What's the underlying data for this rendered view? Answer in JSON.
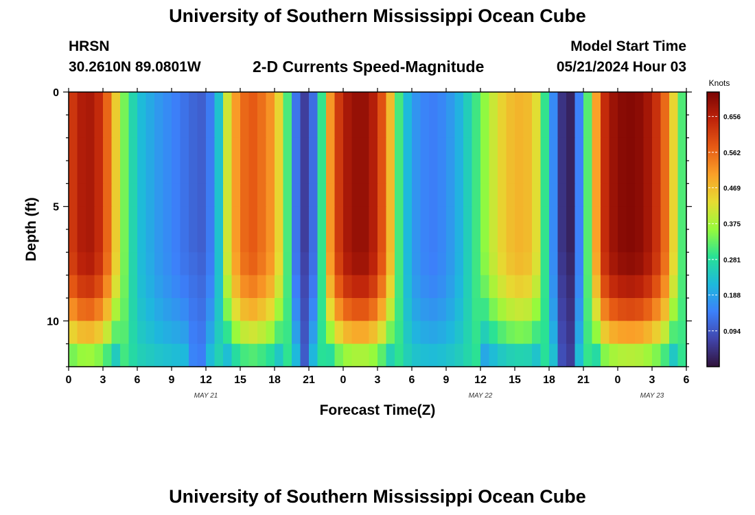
{
  "header": {
    "title": "University of Southern Mississippi Ocean Cube",
    "station": "HRSN",
    "coordinates": "30.2610N  89.0801W",
    "subtitle": "2-D Currents Speed-Magnitude",
    "model_start_label": "Model Start Time",
    "model_start_value": "05/21/2024 Hour 03"
  },
  "footer": {
    "title": "University of Southern Mississippi Ocean Cube"
  },
  "chart_data": {
    "type": "heatmap",
    "title": "2-D Currents Speed-Magnitude",
    "xlabel": "Forecast Time(Z)",
    "ylabel": "Depth (ft)",
    "x_ticks": [
      "0",
      "3",
      "6",
      "9",
      "12",
      "15",
      "18",
      "21",
      "0",
      "3",
      "6",
      "9",
      "12",
      "15",
      "18",
      "21",
      "0",
      "3",
      "6"
    ],
    "x_range_hours": [
      0,
      54
    ],
    "date_labels": [
      {
        "text": "MAY 21",
        "hour": 12
      },
      {
        "text": "MAY 22",
        "hour": 36
      },
      {
        "text": "MAY 23",
        "hour": 51
      }
    ],
    "y_ticks": [
      "0",
      "5",
      "10"
    ],
    "y_range_ft": [
      0,
      12
    ],
    "depth_rows_ft": [
      0.5,
      1.5,
      2.5,
      3.5,
      4.5,
      5.5,
      6.5,
      7.5,
      8.5,
      9.5,
      10.5,
      11.5
    ],
    "colorbar": {
      "label": "Knots",
      "ticks": [
        "0.656",
        "0.562",
        "0.469",
        "0.375",
        "0.281",
        "0.188",
        "0.094"
      ],
      "range": [
        0.0,
        0.72
      ]
    },
    "surface_speed_profile": [
      {
        "hour": 0,
        "knots": 0.6
      },
      {
        "hour": 1,
        "knots": 0.66
      },
      {
        "hour": 2,
        "knots": 0.67
      },
      {
        "hour": 3,
        "knots": 0.62
      },
      {
        "hour": 4,
        "knots": 0.47
      },
      {
        "hour": 5,
        "knots": 0.32
      },
      {
        "hour": 6,
        "knots": 0.23
      },
      {
        "hour": 7,
        "knots": 0.2
      },
      {
        "hour": 8,
        "knots": 0.17
      },
      {
        "hour": 9,
        "knots": 0.15
      },
      {
        "hour": 10,
        "knots": 0.13
      },
      {
        "hour": 11,
        "knots": 0.11
      },
      {
        "hour": 12,
        "knots": 0.1
      },
      {
        "hour": 13,
        "knots": 0.2
      },
      {
        "hour": 14,
        "knots": 0.44
      },
      {
        "hour": 15,
        "knots": 0.55
      },
      {
        "hour": 16,
        "knots": 0.58
      },
      {
        "hour": 17,
        "knots": 0.55
      },
      {
        "hour": 18,
        "knots": 0.5
      },
      {
        "hour": 19,
        "knots": 0.34
      },
      {
        "hour": 20,
        "knots": 0.1
      },
      {
        "hour": 21,
        "knots": 0.04
      },
      {
        "hour": 22,
        "knots": 0.26
      },
      {
        "hour": 23,
        "knots": 0.55
      },
      {
        "hour": 24,
        "knots": 0.66
      },
      {
        "hour": 25,
        "knots": 0.69
      },
      {
        "hour": 26,
        "knots": 0.69
      },
      {
        "hour": 27,
        "knots": 0.64
      },
      {
        "hour": 28,
        "knots": 0.5
      },
      {
        "hour": 29,
        "knots": 0.28
      },
      {
        "hour": 30,
        "knots": 0.18
      },
      {
        "hour": 31,
        "knots": 0.15
      },
      {
        "hour": 32,
        "knots": 0.14
      },
      {
        "hour": 33,
        "knots": 0.16
      },
      {
        "hour": 34,
        "knots": 0.2
      },
      {
        "hour": 35,
        "knots": 0.26
      },
      {
        "hour": 36,
        "knots": 0.33
      },
      {
        "hour": 37,
        "knots": 0.4
      },
      {
        "hour": 38,
        "knots": 0.45
      },
      {
        "hour": 39,
        "knots": 0.48
      },
      {
        "hour": 40,
        "knots": 0.48
      },
      {
        "hour": 41,
        "knots": 0.42
      },
      {
        "hour": 42,
        "knots": 0.22
      },
      {
        "hour": 43,
        "knots": 0.05
      },
      {
        "hour": 44,
        "knots": 0.02
      },
      {
        "hour": 45,
        "knots": 0.22
      },
      {
        "hour": 46,
        "knots": 0.48
      },
      {
        "hour": 47,
        "knots": 0.66
      },
      {
        "hour": 48,
        "knots": 0.7
      },
      {
        "hour": 49,
        "knots": 0.71
      },
      {
        "hour": 50,
        "knots": 0.7
      },
      {
        "hour": 51,
        "knots": 0.66
      },
      {
        "hour": 52,
        "knots": 0.58
      },
      {
        "hour": 53,
        "knots": 0.42
      },
      {
        "hour": 54,
        "knots": 0.25
      }
    ]
  }
}
